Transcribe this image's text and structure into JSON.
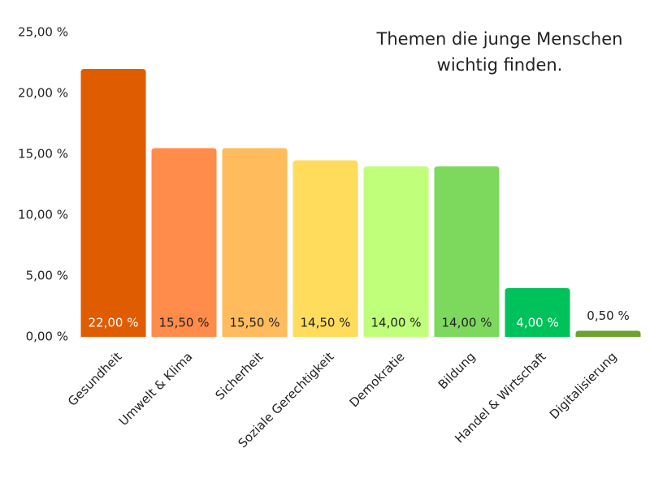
{
  "chart_data": {
    "type": "bar",
    "title": "Themen die junge Menschen wichtig finden.",
    "categories": [
      "Gesundheit",
      "Umwelt & Klima",
      "Sicherheit",
      "Soziale Gerechtigkeit",
      "Demokratie",
      "Bildung",
      "Handel & Wirtschaft",
      "Digitalisierung"
    ],
    "values": [
      22,
      15.5,
      15.5,
      14.5,
      14,
      14,
      4,
      0.5
    ],
    "value_labels": [
      "22,00 %",
      "15,50 %",
      "15,50 %",
      "14,50 %",
      "14,00 %",
      "14,00 %",
      "4,00 %",
      "0,50 %"
    ],
    "colors": [
      "#e05c00",
      "#ff8c4a",
      "#ffbb5c",
      "#ffdc5c",
      "#c0ff7a",
      "#7dd95e",
      "#00c25a",
      "#6ba32e"
    ],
    "ylim": [
      0,
      25
    ],
    "yticks": [
      {
        "value": 0,
        "label": "0,00 %"
      },
      {
        "value": 5,
        "label": "5,00 %"
      },
      {
        "value": 10,
        "label": "10,00 %"
      },
      {
        "value": 15,
        "label": "15,00 %"
      },
      {
        "value": 20,
        "label": "20,00 %"
      },
      {
        "value": 25,
        "label": "25,00 %"
      }
    ],
    "grid": false
  }
}
